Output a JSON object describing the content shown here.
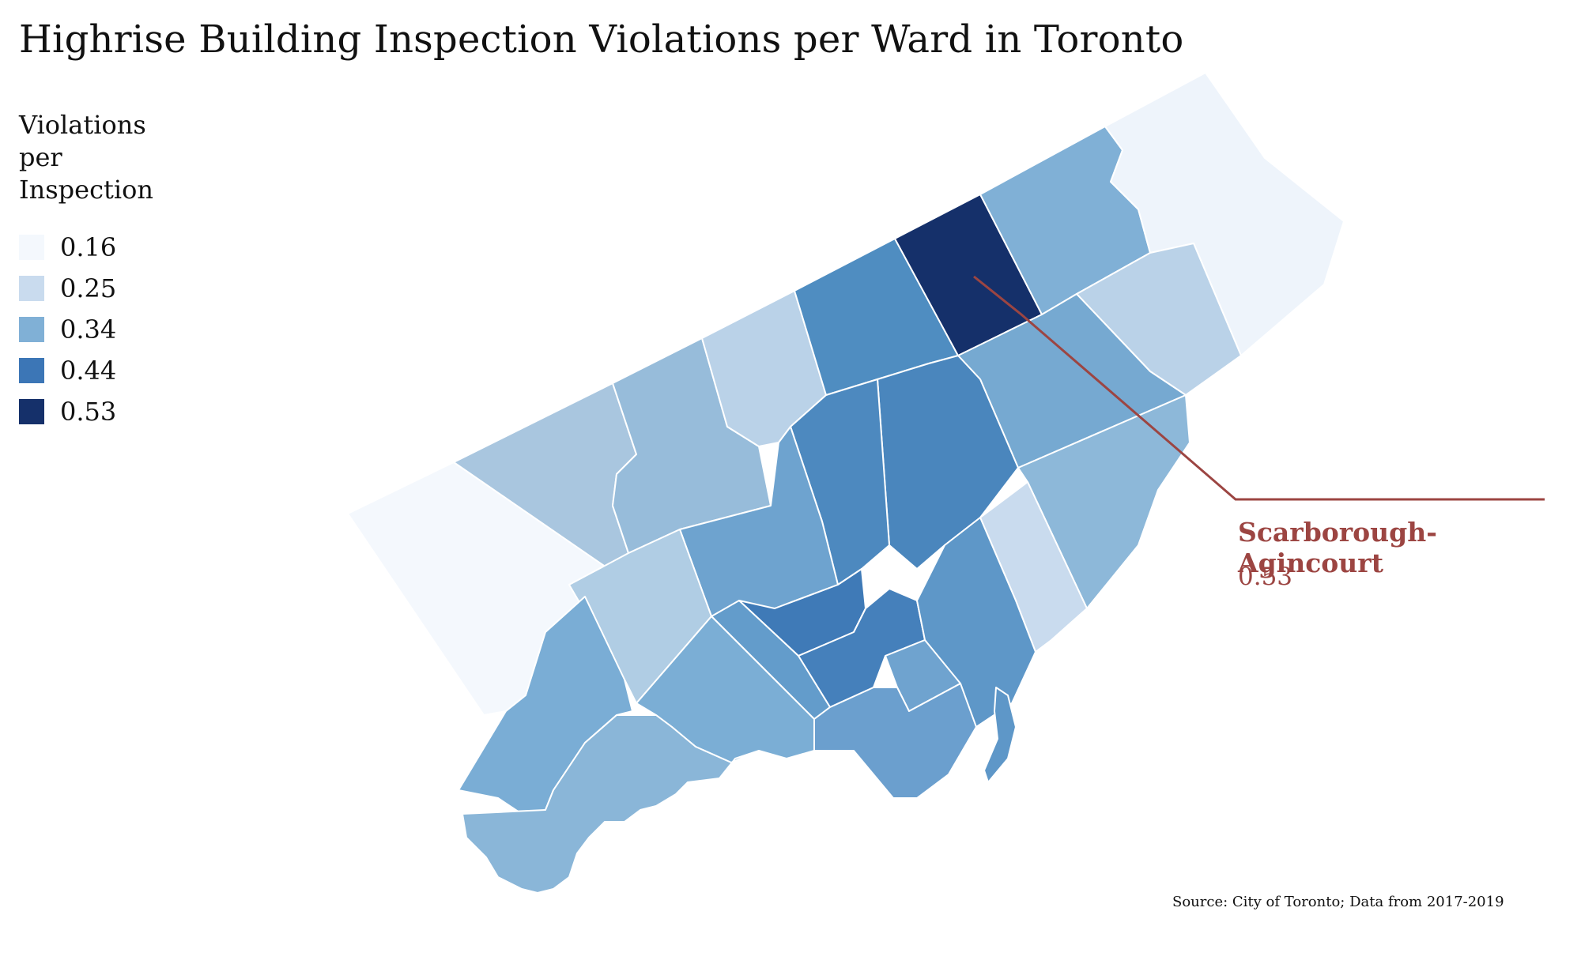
{
  "title": "Highrise Building Inspection Violations per Ward in Toronto",
  "legend": {
    "title_lines": [
      "Violations",
      "per",
      "Inspection"
    ],
    "items": [
      {
        "label": "0.16",
        "color": "#f4f8fd"
      },
      {
        "label": "0.25",
        "color": "#c9dbee"
      },
      {
        "label": "0.34",
        "color": "#80b0d6"
      },
      {
        "label": "0.44",
        "color": "#3c76b6"
      },
      {
        "label": "0.53",
        "color": "#15306a"
      }
    ]
  },
  "callout": {
    "ward": "Scarborough-Agincourt",
    "value": "0.53",
    "color": "#9c4542"
  },
  "source": "Source: City of Toronto; Data from 2017-2019"
}
